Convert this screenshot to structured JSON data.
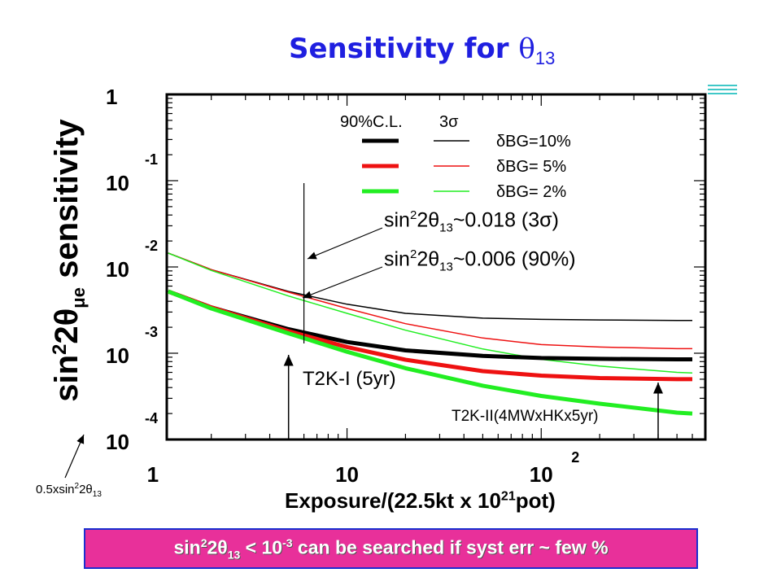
{
  "slide": {
    "title_text": "Sensitivity for",
    "title_symbol": "θ",
    "title_sub": "13",
    "conclusion_prefix": "sin",
    "conclusion_sup": "2",
    "conclusion_mid": "2θ",
    "conclusion_sub": "13",
    "conclusion_after": " < 10",
    "conclusion_exp": "-3",
    "conclusion_tail": " can be searched if syst err ~ few %",
    "accent_color": "#1f1fe0",
    "box_color": "#e8309a"
  },
  "chart_data": {
    "type": "line",
    "x_scale": "log",
    "y_scale": "log",
    "xlim": [
      1.18,
      700
    ],
    "ylim": [
      0.0001,
      1
    ],
    "xlabel_main": "Exposure/(22.5kt x 10",
    "xlabel_sup": "21",
    "xlabel_tail": "pot)",
    "ylabel_sin": "sin",
    "ylabel_sup": "2",
    "ylabel_theta": "2θ",
    "ylabel_sub": "μe",
    "ylabel_tail": " sensitivity",
    "x_ticks": [
      {
        "value": 1,
        "label": "1",
        "sup": ""
      },
      {
        "value": 10,
        "label": "10",
        "sup": ""
      },
      {
        "value": 100,
        "label": "10",
        "sup": "2"
      }
    ],
    "y_ticks": [
      {
        "value": 1,
        "label": "1",
        "sup": ""
      },
      {
        "value": 0.1,
        "label": "10",
        "sup": "-1"
      },
      {
        "value": 0.01,
        "label": "10",
        "sup": "-2"
      },
      {
        "value": 0.001,
        "label": "10",
        "sup": "-3"
      },
      {
        "value": 0.0001,
        "label": "10",
        "sup": "-4"
      }
    ],
    "legend": {
      "header_90": "90%C.L.",
      "header_3s": "3σ",
      "entries": [
        {
          "label": "δBG=10%",
          "color": "#000000"
        },
        {
          "label": "δBG= 5%",
          "color": "#ee1111"
        },
        {
          "label": "δBG= 2%",
          "color": "#22ee22"
        }
      ]
    },
    "series": [
      {
        "cl": "3σ",
        "color": "#000000",
        "width": 1.5,
        "x": [
          1.2,
          2,
          5,
          10,
          20,
          50,
          100,
          200,
          500,
          600
        ],
        "y": [
          0.0145,
          0.0093,
          0.0052,
          0.0037,
          0.0029,
          0.00255,
          0.00247,
          0.00243,
          0.0024,
          0.0024
        ]
      },
      {
        "cl": "3σ",
        "color": "#ee1111",
        "width": 1.5,
        "x": [
          1.2,
          2,
          5,
          10,
          20,
          50,
          100,
          200,
          500,
          600
        ],
        "y": [
          0.0145,
          0.0093,
          0.0051,
          0.0033,
          0.0022,
          0.0015,
          0.00126,
          0.00118,
          0.00113,
          0.00113
        ]
      },
      {
        "cl": "3σ",
        "color": "#22ee22",
        "width": 1.5,
        "x": [
          1.2,
          2,
          5,
          10,
          20,
          50,
          100,
          200,
          500,
          600
        ],
        "y": [
          0.0145,
          0.0091,
          0.0046,
          0.0029,
          0.00185,
          0.00112,
          0.00085,
          0.00071,
          0.0006,
          0.00059
        ]
      },
      {
        "cl": "90%",
        "color": "#000000",
        "width": 5,
        "x": [
          1.2,
          2,
          5,
          10,
          20,
          50,
          100,
          200,
          500,
          600
        ],
        "y": [
          0.0052,
          0.0034,
          0.0019,
          0.00135,
          0.00108,
          0.00093,
          0.00088,
          0.00086,
          0.00085,
          0.00085
        ]
      },
      {
        "cl": "90%",
        "color": "#ee1111",
        "width": 5,
        "x": [
          1.2,
          2,
          5,
          10,
          20,
          50,
          100,
          200,
          500,
          600
        ],
        "y": [
          0.0052,
          0.0034,
          0.0018,
          0.00118,
          0.00084,
          0.00062,
          0.00055,
          0.000515,
          0.0005,
          0.0005
        ]
      },
      {
        "cl": "90%",
        "color": "#22ee22",
        "width": 5,
        "x": [
          1.2,
          2,
          5,
          10,
          20,
          50,
          100,
          200,
          500,
          600
        ],
        "y": [
          0.0052,
          0.0033,
          0.0017,
          0.00104,
          0.00067,
          0.00042,
          0.00032,
          0.00026,
          0.000205,
          0.0002
        ]
      }
    ],
    "annotations": {
      "sens_3s": {
        "pre": "sin",
        "sup": "2",
        "theta": "2θ",
        "sub": "13",
        "post": "~0.018 (3σ)"
      },
      "sens_90": {
        "pre": "sin",
        "sup": "2",
        "theta": "2θ",
        "sub": "13",
        "post": "~0.006 (90%)"
      },
      "t2k1_label": "T2K-I (5yr)",
      "t2k1_x": 5,
      "t2k2_label": "T2K-II(4MWxHKx5yr)",
      "t2k2_x": 400,
      "note_pre": "0.5xsin",
      "note_sup": "2",
      "note_theta": "2θ",
      "note_sub": "13"
    }
  }
}
